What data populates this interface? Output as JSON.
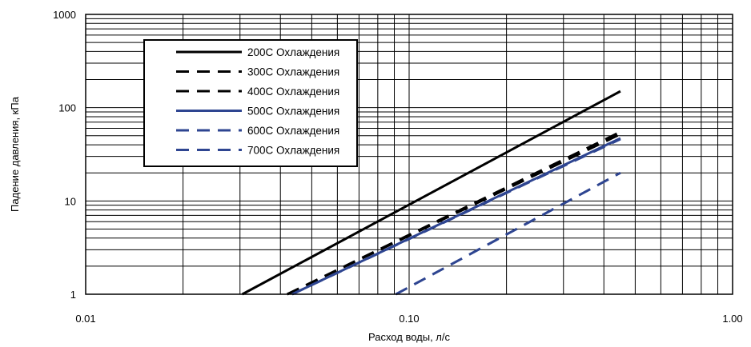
{
  "chart_data": {
    "type": "line",
    "xlabel": "Расход воды, л/с",
    "ylabel": "Падение давления, кПа",
    "x_scale": "log",
    "y_scale": "log",
    "xlim": [
      0.01,
      1.0
    ],
    "ylim": [
      1,
      1000
    ],
    "x_tick_labels": [
      "0.01",
      "0.10",
      "1.00"
    ],
    "y_tick_labels": [
      "1",
      "10",
      "100",
      "1000"
    ],
    "grid": true,
    "legend_position": "top-left",
    "series": [
      {
        "name": "200C Охлаждения",
        "color": "#000000",
        "dash": "solid",
        "x": [
          0.0305,
          0.45
        ],
        "y": [
          1.0,
          150
        ]
      },
      {
        "name": "300C Охлаждения",
        "color": "#000000",
        "dash": "dashed",
        "x": [
          0.042,
          0.45
        ],
        "y": [
          1.0,
          55
        ]
      },
      {
        "name": "400C Охлаждения",
        "color": "#000000",
        "dash": "dashed",
        "x": [
          0.042,
          0.45
        ],
        "y": [
          1.0,
          52
        ]
      },
      {
        "name": "500C Охлаждения",
        "color": "#2e4591",
        "dash": "solid",
        "x": [
          0.0435,
          0.45
        ],
        "y": [
          1.0,
          47
        ]
      },
      {
        "name": "600C Охлаждения",
        "color": "#2e4591",
        "dash": "dashed",
        "x": [
          0.0435,
          0.45
        ],
        "y": [
          1.0,
          46
        ]
      },
      {
        "name": "700C Охлаждения",
        "color": "#2e4591",
        "dash": "dashed",
        "x": [
          0.091,
          0.45
        ],
        "y": [
          1.0,
          20
        ]
      }
    ]
  }
}
